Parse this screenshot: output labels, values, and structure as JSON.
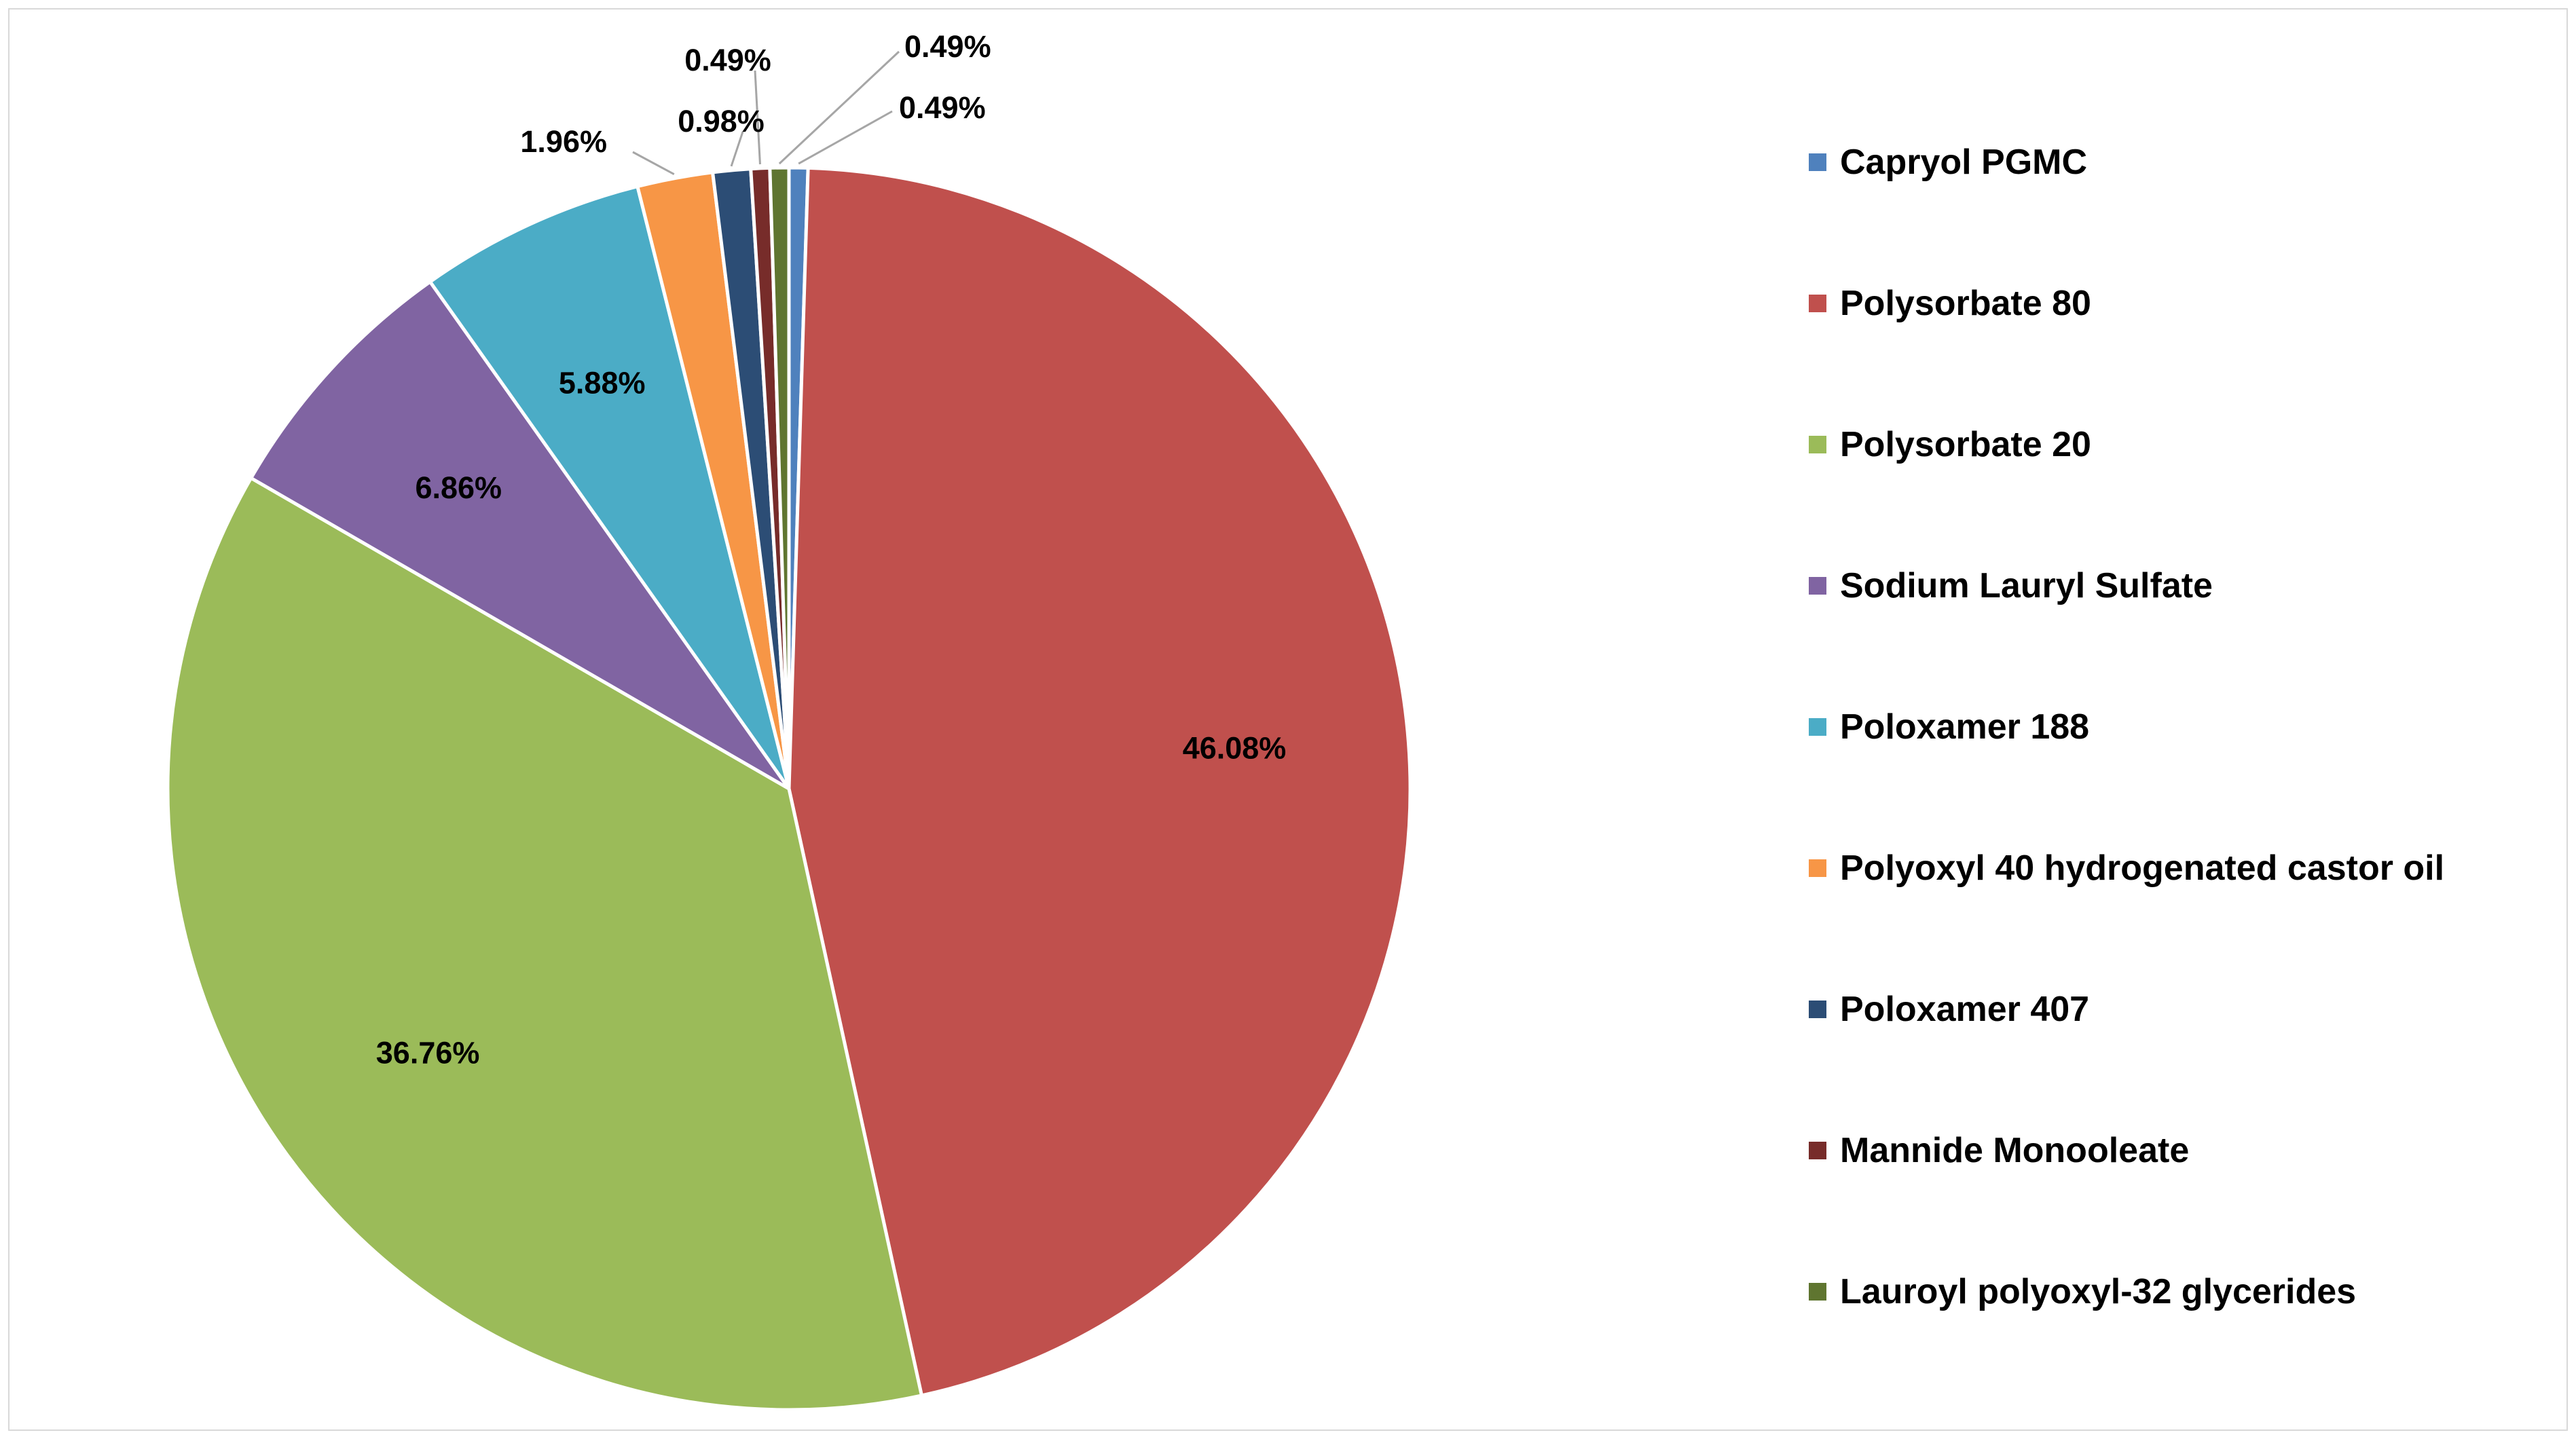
{
  "chart_data": {
    "type": "pie",
    "title": "",
    "slices": [
      {
        "name": "Capryol PGMC",
        "value": 0.49,
        "label": "0.49%",
        "color": "#4F81BD"
      },
      {
        "name": "Polysorbate 80",
        "value": 46.08,
        "label": "46.08%",
        "color": "#C0504D"
      },
      {
        "name": "Polysorbate 20",
        "value": 36.76,
        "label": "36.76%",
        "color": "#9BBB59"
      },
      {
        "name": "Sodium Lauryl Sulfate",
        "value": 6.86,
        "label": "6.86%",
        "color": "#8064A2"
      },
      {
        "name": "Poloxamer 188",
        "value": 5.88,
        "label": "5.88%",
        "color": "#4BACC6"
      },
      {
        "name": "Polyoxyl 40 hydrogenated castor oil",
        "value": 1.96,
        "label": "1.96%",
        "color": "#F79646"
      },
      {
        "name": "Poloxamer 407",
        "value": 0.98,
        "label": "0.98%",
        "color": "#2C4D75"
      },
      {
        "name": "Mannide Monooleate",
        "value": 0.49,
        "label": "0.49%",
        "color": "#772C2A"
      },
      {
        "name": "Lauroyl polyoxyl-32 glycerides",
        "value": 0.49,
        "label": "0.49%",
        "color": "#5F7530"
      }
    ],
    "legend_position": "right",
    "data_labels": "percent"
  }
}
